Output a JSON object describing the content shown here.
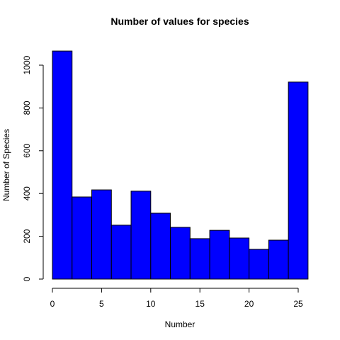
{
  "chart_data": {
    "type": "histogram",
    "title": "Number of values for species",
    "x_label": "Number",
    "y_label": "Number of Species",
    "bins": [
      0,
      2,
      4,
      6,
      8,
      10,
      12,
      14,
      16,
      18,
      20,
      22,
      24,
      26
    ],
    "values": [
      1066,
      384,
      417,
      252,
      411,
      308,
      242,
      189,
      228,
      192,
      139,
      182,
      921
    ],
    "color": "#0000ff",
    "xlim": [
      0,
      25
    ],
    "xticks": [
      0,
      5,
      10,
      15,
      20,
      25
    ],
    "ylim": [
      0,
      1000
    ],
    "yticks": [
      0,
      200,
      400,
      600,
      800,
      1000
    ]
  }
}
